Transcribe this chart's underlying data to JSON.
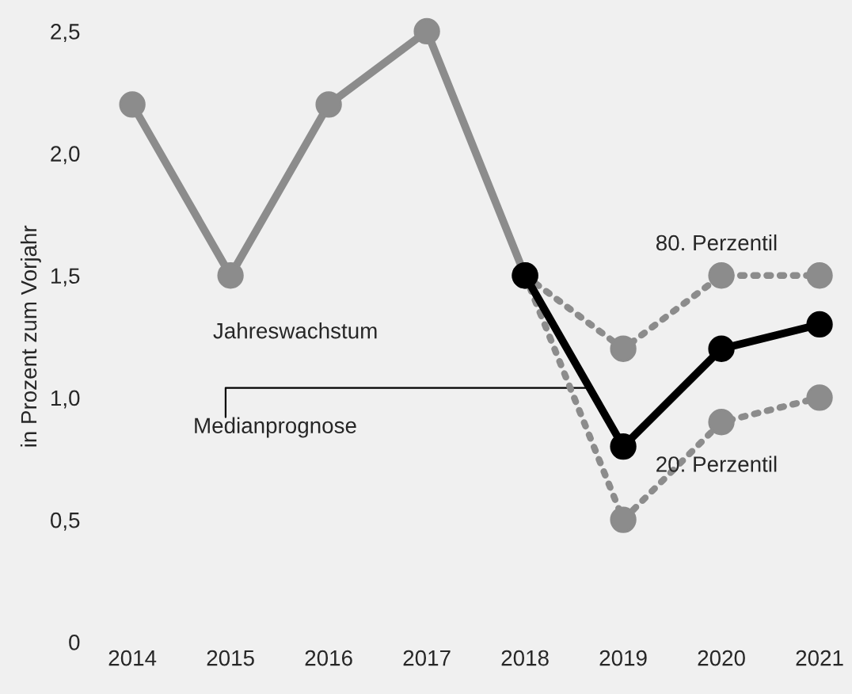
{
  "chart_data": {
    "type": "line",
    "ylabel": "in Prozent zum Vorjahr",
    "categories": [
      "2014",
      "2015",
      "2016",
      "2017",
      "2018",
      "2019",
      "2020",
      "2021"
    ],
    "series": [
      {
        "name": "80. Perzentil",
        "color": "#8c8c8c",
        "line_style": "dotted",
        "values": [
          null,
          null,
          null,
          null,
          1.5,
          1.2,
          1.5,
          1.5
        ]
      },
      {
        "name": "20. Perzentil",
        "color": "#8c8c8c",
        "line_style": "dotted",
        "values": [
          null,
          null,
          null,
          null,
          1.5,
          0.5,
          0.9,
          1.0
        ]
      },
      {
        "name": "Jahreswachstum",
        "color": "#8c8c8c",
        "line_style": "solid",
        "values": [
          2.2,
          1.5,
          2.2,
          2.5,
          1.5,
          null,
          null,
          null
        ]
      },
      {
        "name": "Medianprognose",
        "color": "#000000",
        "line_style": "solid",
        "values": [
          null,
          null,
          null,
          null,
          1.5,
          0.8,
          1.2,
          1.3
        ]
      }
    ],
    "ylim": [
      0,
      2.5
    ],
    "yticks": [
      {
        "value": 0,
        "label": "0"
      },
      {
        "value": 0.5,
        "label": "0,5"
      },
      {
        "value": 1.0,
        "label": "1,0"
      },
      {
        "value": 1.5,
        "label": "1,5"
      },
      {
        "value": 2.0,
        "label": "2,0"
      },
      {
        "value": 2.5,
        "label": "2,5"
      }
    ],
    "marker": "circle",
    "grid": false,
    "legend": false
  }
}
